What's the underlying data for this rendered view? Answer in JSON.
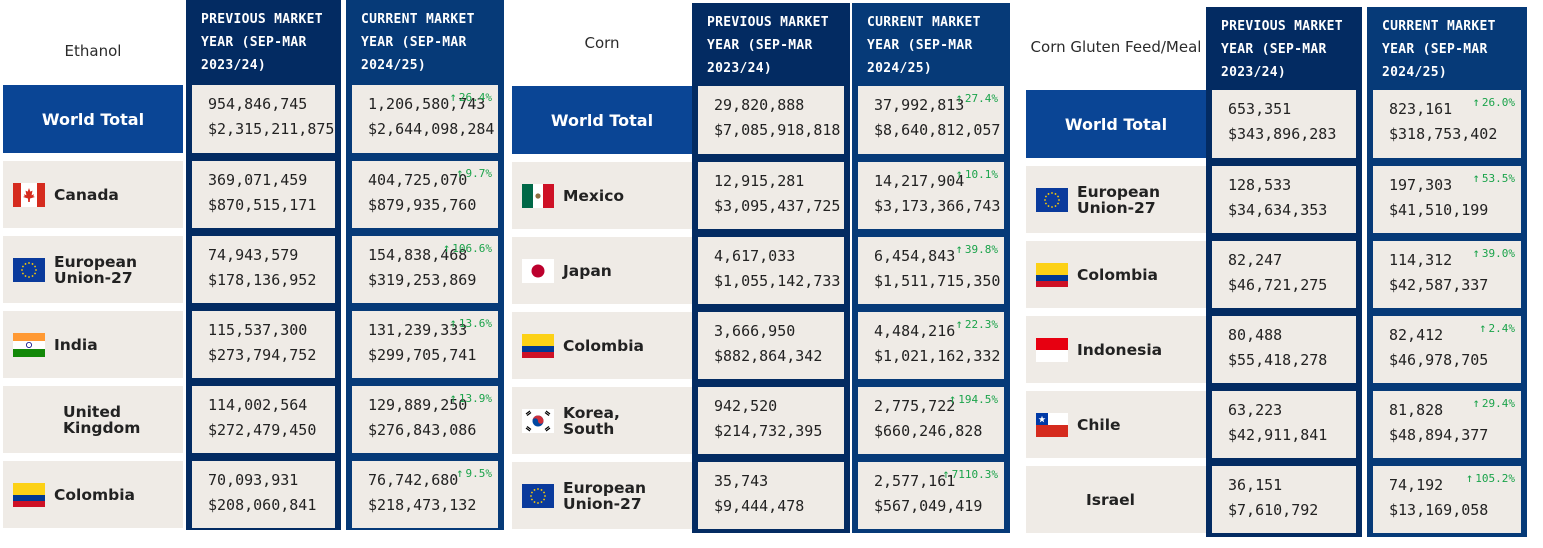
{
  "tables": [
    {
      "title": "Ethanol",
      "header_prev": "PREVIOUS MARKET\nYEAR (SEP-MAR\n2023/24)",
      "header_curr": "CURRENT MARKET\nYEAR (SEP-MAR\n2024/25)",
      "world": {
        "label": "World Total",
        "prev_qty": "954,846,745",
        "prev_val": "$2,315,211,875",
        "curr_qty": "1,206,580,743",
        "curr_val": "$2,644,098,284",
        "change": "26.4%"
      },
      "rows": [
        {
          "name": "Canada",
          "flag": "canada-flag-icon",
          "prev_qty": "369,071,459",
          "prev_val": "$870,515,171",
          "curr_qty": "404,725,070",
          "curr_val": "$879,935,760",
          "change": "9.7%"
        },
        {
          "name": "European Union-27",
          "flag": "eu-flag-icon",
          "prev_qty": "74,943,579",
          "prev_val": "$178,136,952",
          "curr_qty": "154,838,468",
          "curr_val": "$319,253,869",
          "change": "106.6%"
        },
        {
          "name": "India",
          "flag": "india-flag-icon",
          "prev_qty": "115,537,300",
          "prev_val": "$273,794,752",
          "curr_qty": "131,239,333",
          "curr_val": "$299,705,741",
          "change": "13.6%"
        },
        {
          "name": "United Kingdom",
          "flag": "",
          "prev_qty": "114,002,564",
          "prev_val": "$272,479,450",
          "curr_qty": "129,889,250",
          "curr_val": "$276,843,086",
          "change": "13.9%"
        },
        {
          "name": "Colombia",
          "flag": "colombia-flag-icon",
          "prev_qty": "70,093,931",
          "prev_val": "$208,060,841",
          "curr_qty": "76,742,680",
          "curr_val": "$218,473,132",
          "change": "9.5%"
        }
      ]
    },
    {
      "title": "Corn",
      "header_prev": "PREVIOUS MARKET\nYEAR (SEP-MAR\n2023/24)",
      "header_curr": "CURRENT MARKET\nYEAR (SEP-MAR\n2024/25)",
      "world": {
        "label": "World Total",
        "prev_qty": "29,820,888",
        "prev_val": "$7,085,918,818",
        "curr_qty": "37,992,813",
        "curr_val": "$8,640,812,057",
        "change": "27.4%"
      },
      "rows": [
        {
          "name": "Mexico",
          "flag": "mexico-flag-icon",
          "prev_qty": "12,915,281",
          "prev_val": "$3,095,437,725",
          "curr_qty": "14,217,904",
          "curr_val": "$3,173,366,743",
          "change": "10.1%"
        },
        {
          "name": "Japan",
          "flag": "japan-flag-icon",
          "prev_qty": "4,617,033",
          "prev_val": "$1,055,142,733",
          "curr_qty": "6,454,843",
          "curr_val": "$1,511,715,350",
          "change": "39.8%"
        },
        {
          "name": "Colombia",
          "flag": "colombia-flag-icon",
          "prev_qty": "3,666,950",
          "prev_val": "$882,864,342",
          "curr_qty": "4,484,216",
          "curr_val": "$1,021,162,332",
          "change": "22.3%"
        },
        {
          "name": "Korea, South",
          "flag": "korea-flag-icon",
          "prev_qty": "942,520",
          "prev_val": "$214,732,395",
          "curr_qty": "2,775,722",
          "curr_val": "$660,246,828",
          "change": "194.5%"
        },
        {
          "name": "European Union-27",
          "flag": "eu-flag-icon",
          "prev_qty": "35,743",
          "prev_val": "$9,444,478",
          "curr_qty": "2,577,161",
          "curr_val": "$567,049,419",
          "change": "7110.3%"
        }
      ]
    },
    {
      "title": "Corn Gluten Feed/Meal",
      "header_prev": "PREVIOUS MARKET\nYEAR (SEP-MAR\n2023/24)",
      "header_curr": "CURRENT MARKET\nYEAR (SEP-MAR\n2024/25)",
      "world": {
        "label": "World Total",
        "prev_qty": "653,351",
        "prev_val": "$343,896,283",
        "curr_qty": "823,161",
        "curr_val": "$318,753,402",
        "change": "26.0%"
      },
      "rows": [
        {
          "name": "European Union-27",
          "flag": "eu-flag-icon",
          "prev_qty": "128,533",
          "prev_val": "$34,634,353",
          "curr_qty": "197,303",
          "curr_val": "$41,510,199",
          "change": "53.5%"
        },
        {
          "name": "Colombia",
          "flag": "colombia-flag-icon",
          "prev_qty": "82,247",
          "prev_val": "$46,721,275",
          "curr_qty": "114,312",
          "curr_val": "$42,587,337",
          "change": "39.0%"
        },
        {
          "name": "Indonesia",
          "flag": "indonesia-flag-icon",
          "prev_qty": "80,488",
          "prev_val": "$55,418,278",
          "curr_qty": "82,412",
          "curr_val": "$46,978,705",
          "change": "2.4%"
        },
        {
          "name": "Chile",
          "flag": "chile-flag-icon",
          "prev_qty": "63,223",
          "prev_val": "$42,911,841",
          "curr_qty": "81,828",
          "curr_val": "$48,894,377",
          "change": "29.4%"
        },
        {
          "name": "Israel",
          "flag": "",
          "prev_qty": "36,151",
          "prev_val": "$7,610,792",
          "curr_qty": "74,192",
          "curr_val": "$13,169,058",
          "change": "105.2%"
        }
      ]
    }
  ],
  "colors": {
    "header_blue": "#063a78",
    "header_dark": "#032b62",
    "world_blue": "#0a4595",
    "cell_bg": "#efebe6",
    "up_green": "#1aa34a"
  }
}
